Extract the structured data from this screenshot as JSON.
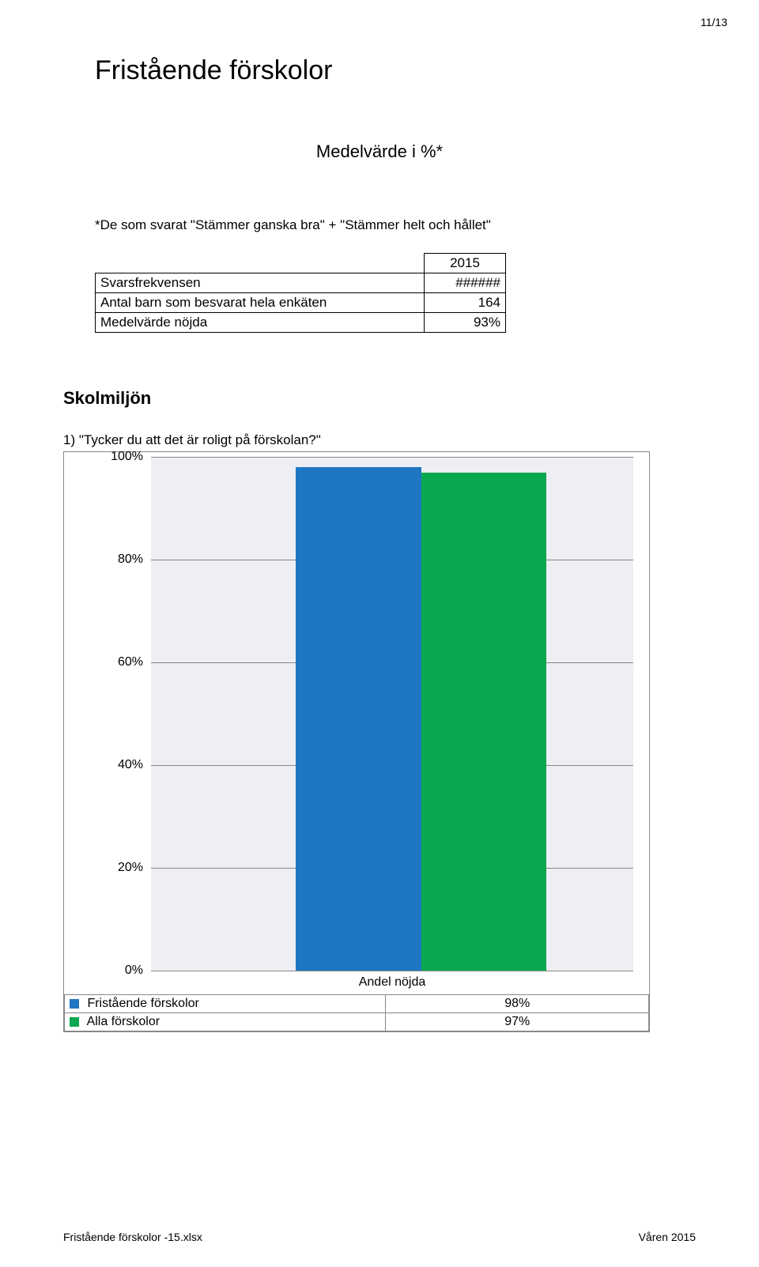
{
  "page_number": "11/13",
  "title": "Fristående förskolor",
  "subtitle": "Medelvärde i %*",
  "note": "*De som svarat \"Stämmer ganska bra\" + \"Stämmer helt och hållet\"",
  "summary": {
    "year_header": "2015",
    "rows": [
      {
        "label": "Svarsfrekvensen",
        "value": "######"
      },
      {
        "label": "Antal barn som besvarat hela enkäten",
        "value": "164"
      },
      {
        "label": "Medelvärde nöjda",
        "value": "93%"
      }
    ]
  },
  "section_heading": "Skolmiljön",
  "question": "1) \"Tycker du att det är roligt på förskolan?\"",
  "chart": {
    "type": "bar",
    "background_color": "#eeeef4",
    "grid_color": "#888888",
    "ylim_max": 100,
    "y_ticks": [
      {
        "label": "100%",
        "pct": 100
      },
      {
        "label": "80%",
        "pct": 80
      },
      {
        "label": "60%",
        "pct": 60
      },
      {
        "label": "40%",
        "pct": 40
      },
      {
        "label": "20%",
        "pct": 20
      },
      {
        "label": "0%",
        "pct": 0
      }
    ],
    "x_category": "Andel nöjda",
    "series": [
      {
        "label": "Fristående förskolor",
        "value_pct": 98,
        "value_text": "98%",
        "color": "#1f77c4"
      },
      {
        "label": "Alla förskolor",
        "value_pct": 97,
        "value_text": "97%",
        "color": "#0aa84f"
      }
    ],
    "bar_positions_left_pct": [
      30,
      56
    ]
  },
  "footer": {
    "left": "Fristående förskolor -15.xlsx",
    "right": "Våren 2015"
  }
}
